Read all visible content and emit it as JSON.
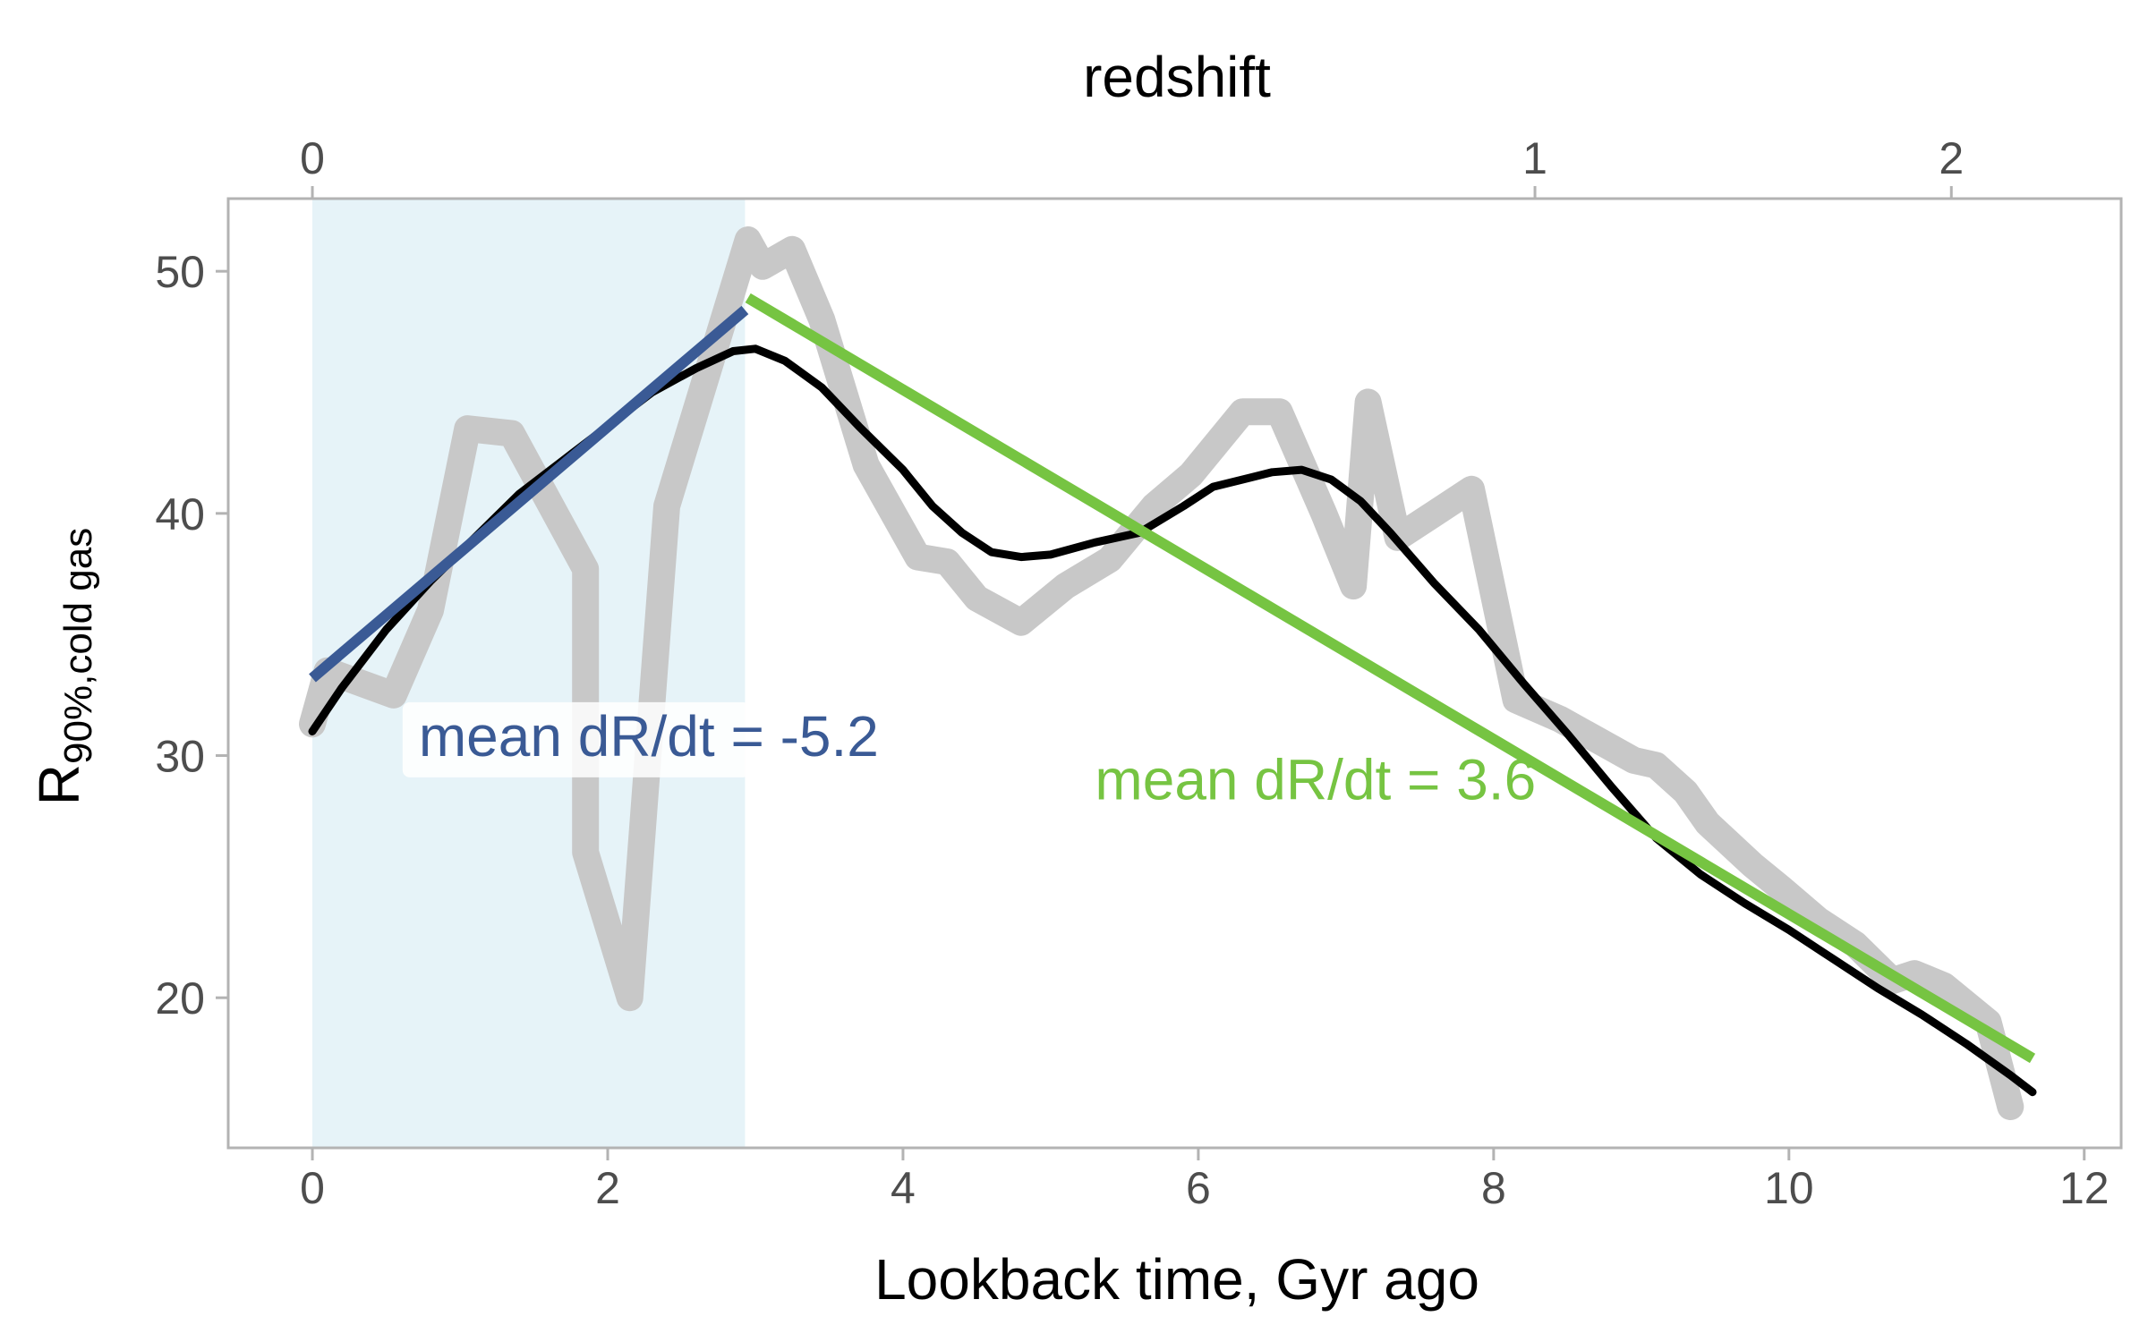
{
  "chart_data": {
    "type": "line",
    "x_axis_bottom": {
      "label": "Lookback time, Gyr ago",
      "range": [
        -0.57,
        12.25
      ],
      "ticks": [
        0,
        2,
        4,
        6,
        8,
        10,
        12
      ],
      "tick_labels": [
        "0",
        "2",
        "4",
        "6",
        "8",
        "10",
        "12"
      ]
    },
    "x_axis_top": {
      "label": "redshift",
      "tick_positions_lookback_gyr": [
        0,
        8.28,
        11.1
      ],
      "tick_labels": [
        "0",
        "1",
        "2"
      ]
    },
    "y_axis": {
      "label_main": "R",
      "label_subscript": "90%,cold gas",
      "range": [
        13.8,
        53
      ],
      "ticks": [
        20,
        30,
        40,
        50
      ],
      "tick_labels": [
        "20",
        "30",
        "40",
        "50"
      ]
    },
    "shaded_region": {
      "x_range": [
        0,
        2.93
      ],
      "color": "#e6f3f8"
    },
    "series": [
      {
        "kind": "raw",
        "color": "#c8c8c8",
        "x": [
          0,
          0.1,
          0.55,
          0.8,
          1.05,
          1.35,
          1.85,
          1.85,
          2.15,
          2.4,
          2.95,
          3.05,
          3.25,
          3.45,
          3.75,
          4.1,
          4.3,
          4.5,
          4.8,
          5.1,
          5.4,
          5.7,
          5.95,
          6.3,
          6.55,
          6.85,
          7.05,
          7.15,
          7.35,
          7.6,
          7.85,
          8.15,
          8.45,
          8.95,
          9.1,
          9.3,
          9.45,
          9.75,
          9.95,
          10.2,
          10.45,
          10.7,
          10.85,
          11.05,
          11.35,
          11.5
        ],
        "y": [
          31.3,
          33.5,
          32.5,
          36,
          43.5,
          43.3,
          37.7,
          26,
          20,
          40.3,
          51.3,
          50.2,
          50.9,
          48,
          42,
          38.2,
          38,
          36.5,
          35.5,
          37,
          38.1,
          40.3,
          41.6,
          44.2,
          44.2,
          40,
          37,
          44.6,
          39,
          40,
          41,
          32.3,
          31.5,
          29.8,
          29.6,
          28.5,
          27.2,
          25.5,
          24.5,
          23.2,
          22.2,
          20.7,
          21,
          20.5,
          19,
          15.5
        ]
      },
      {
        "kind": "smoothed",
        "color": "#000000",
        "x": [
          0,
          0.2,
          0.5,
          0.8,
          1.1,
          1.4,
          1.7,
          2.0,
          2.3,
          2.6,
          2.85,
          3.0,
          3.2,
          3.45,
          3.7,
          4.0,
          4.2,
          4.4,
          4.6,
          4.8,
          5.0,
          5.3,
          5.6,
          5.9,
          6.1,
          6.3,
          6.5,
          6.7,
          6.9,
          7.1,
          7.3,
          7.6,
          7.9,
          8.2,
          8.5,
          8.8,
          9.1,
          9.4,
          9.7,
          10.0,
          10.3,
          10.6,
          10.9,
          11.2,
          11.5,
          11.65
        ],
        "y": [
          31,
          32.8,
          35.2,
          37.2,
          39,
          40.8,
          42.2,
          43.6,
          45,
          46,
          46.7,
          46.8,
          46.3,
          45.2,
          43.6,
          41.8,
          40.3,
          39.2,
          38.4,
          38.2,
          38.3,
          38.8,
          39.2,
          40.3,
          41.1,
          41.4,
          41.7,
          41.8,
          41.4,
          40.5,
          39.2,
          37.1,
          35.2,
          33,
          30.9,
          28.7,
          26.6,
          25.1,
          23.9,
          22.8,
          21.6,
          20.4,
          19.3,
          18.1,
          16.8,
          16.1
        ]
      },
      {
        "kind": "fit",
        "color": "#3a5a95",
        "x": [
          0,
          2.93
        ],
        "y": [
          33.2,
          48.4
        ]
      },
      {
        "kind": "fit",
        "color": "#76c442",
        "x": [
          2.95,
          11.65
        ],
        "y": [
          48.9,
          17.5
        ]
      }
    ],
    "annotations": [
      {
        "text": "mean dR/dt = -5.2",
        "color": "#3a5a95",
        "x": 0.72,
        "y": 30.8,
        "boxed": true
      },
      {
        "text": "mean dR/dt = 3.6",
        "color": "#76c442",
        "x": 5.3,
        "y": 29.0,
        "boxed": false
      }
    ],
    "grid": false,
    "legend": "none"
  }
}
